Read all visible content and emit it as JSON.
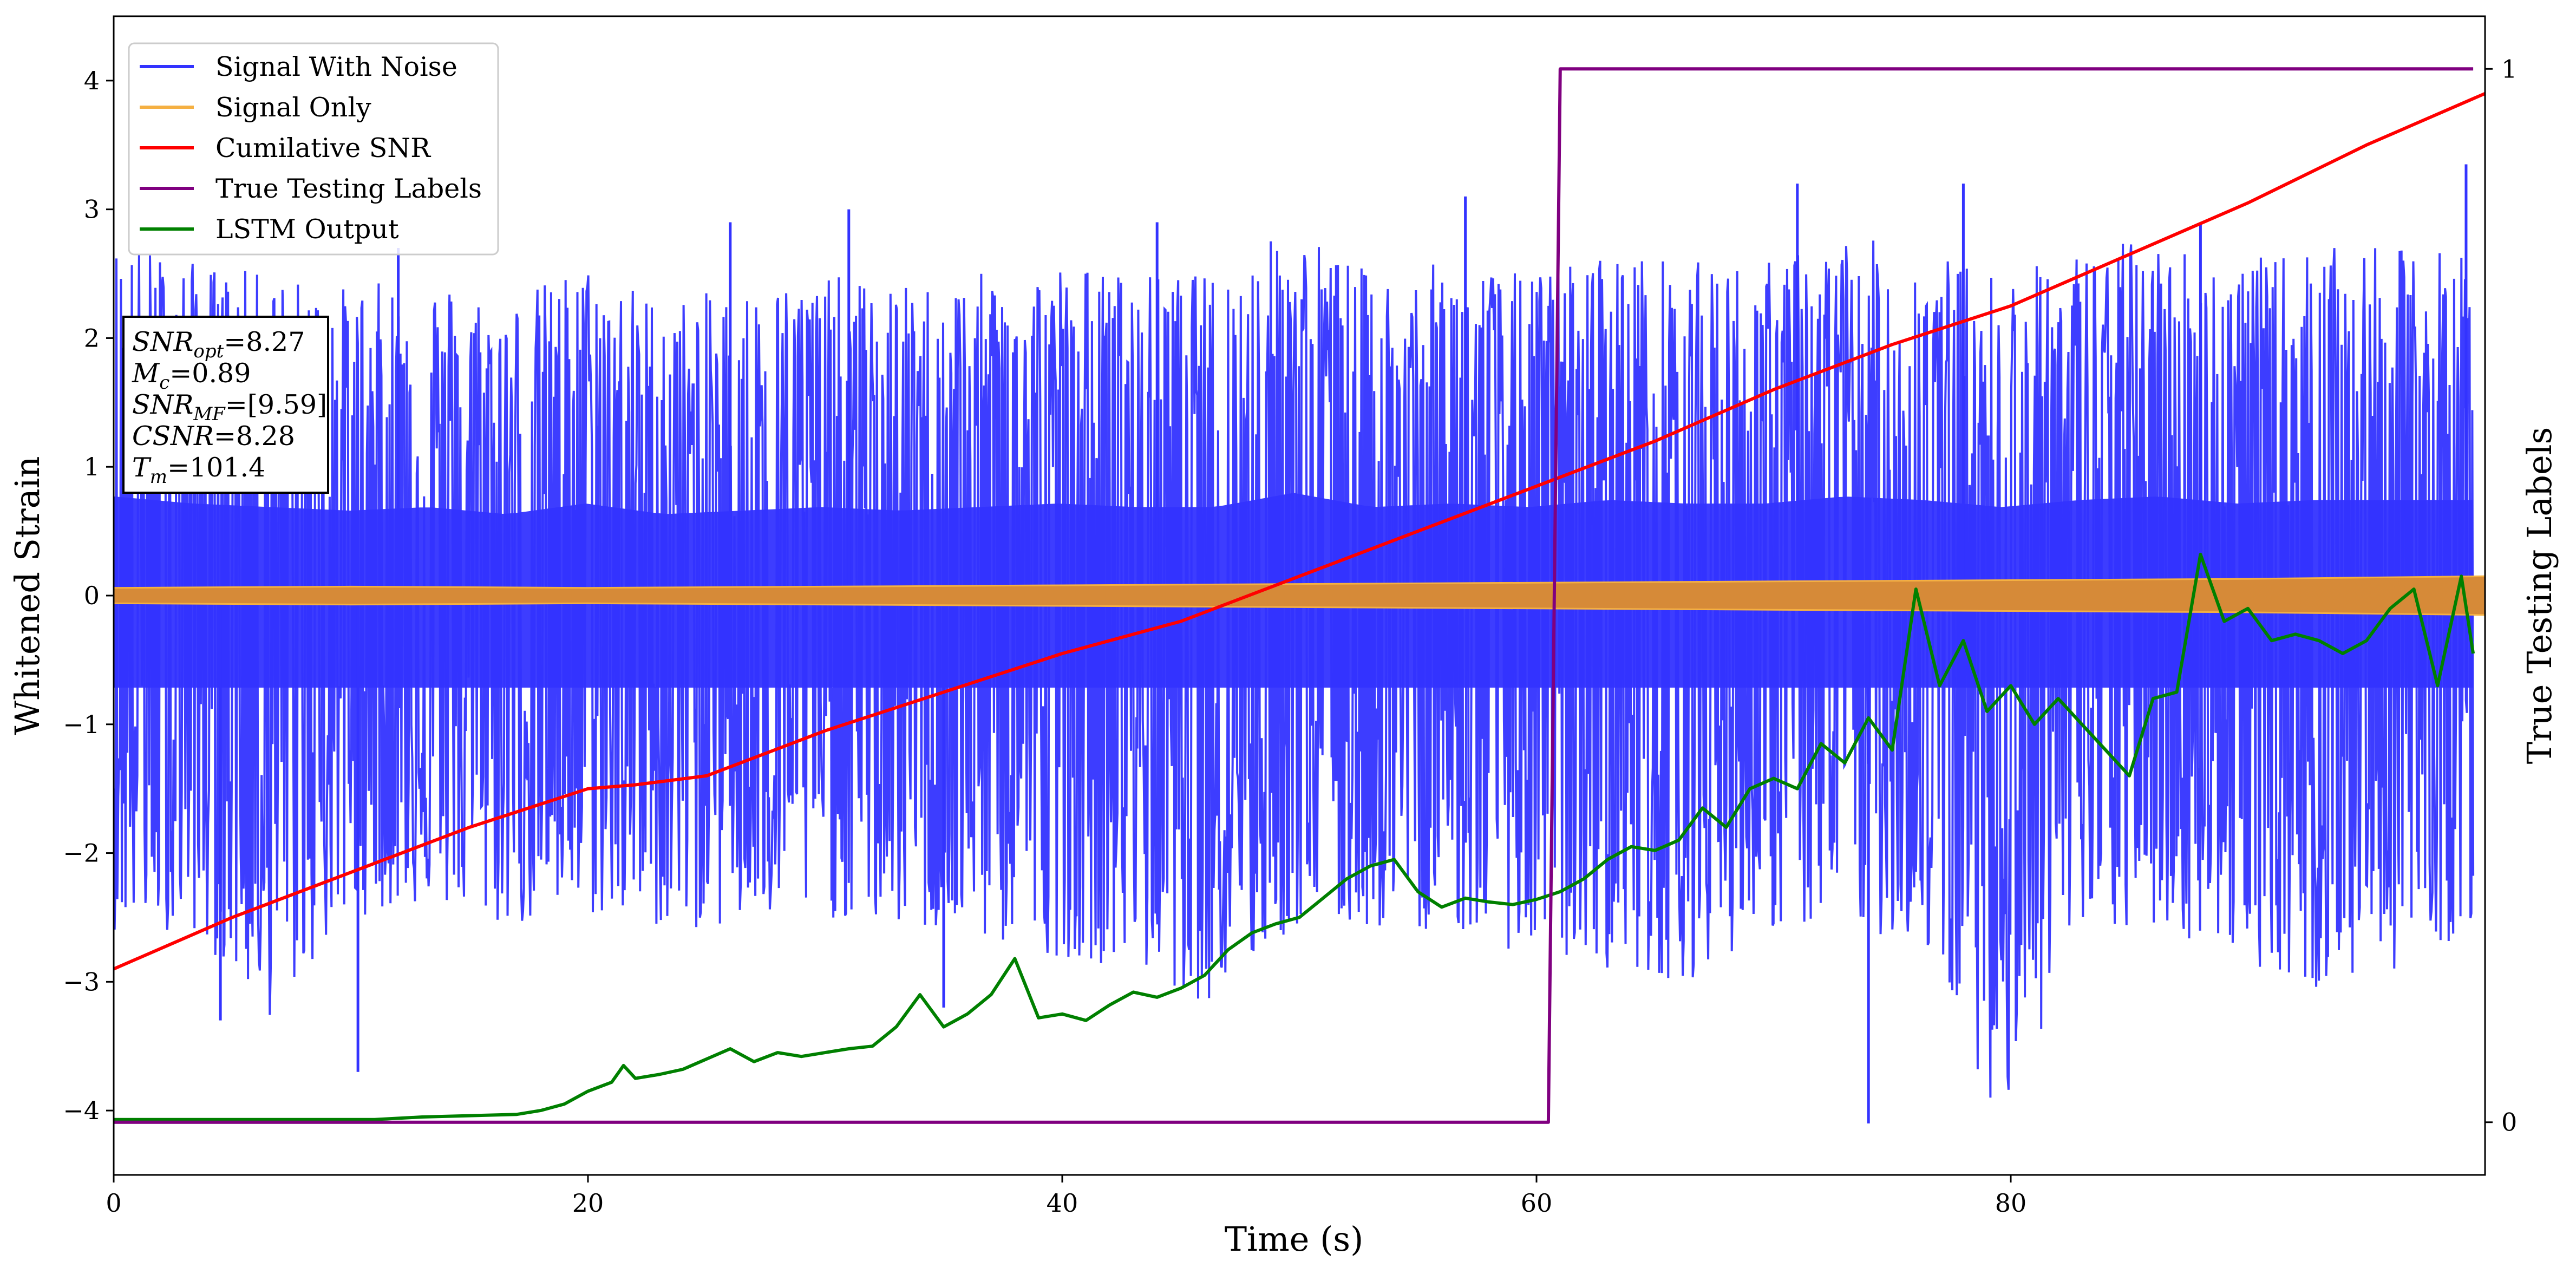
{
  "chart_data": {
    "type": "line",
    "xlabel": "Time (s)",
    "ylabel": "Whitened Strain",
    "y2label": "True Testing Labels",
    "xlim": [
      0,
      100
    ],
    "ylim": [
      -4.5,
      4.5
    ],
    "y2lim": [
      -0.05,
      1.05
    ],
    "xticks": [
      0,
      20,
      40,
      60,
      80
    ],
    "yticks": [
      -4,
      -3,
      -2,
      -1,
      0,
      1,
      2,
      3,
      4
    ],
    "y2ticks": [
      0,
      1
    ],
    "legend_position": "upper-left",
    "series": [
      {
        "name": "Signal With Noise",
        "axis": "left",
        "color": "#3333ff",
        "style": "dense noisy oscillation",
        "envelope_hi": [
          2.8,
          2.6,
          2.5,
          2.4,
          2.5,
          2.3,
          2.6,
          2.3,
          2.4,
          2.5,
          2.4,
          2.5,
          2.6,
          2.5,
          2.5,
          2.9,
          2.5,
          2.6,
          2.5,
          2.7,
          2.6,
          2.6,
          2.8,
          2.7,
          2.5,
          2.7,
          2.8,
          2.6,
          2.7,
          2.7,
          2.7
        ],
        "envelope_lo": [
          -2.6,
          -2.6,
          -3.3,
          -2.5,
          -2.4,
          -2.6,
          -2.5,
          -2.6,
          -2.6,
          -2.5,
          -2.6,
          -2.7,
          -2.8,
          -2.9,
          -3.2,
          -2.6,
          -2.6,
          -2.6,
          -2.8,
          -2.9,
          -3.0,
          -2.6,
          -2.6,
          -2.7,
          -4.1,
          -2.7,
          -2.6,
          -2.8,
          -3.1,
          -2.9,
          -2.6
        ],
        "spikes": [
          [
            4.5,
            -3.3
          ],
          [
            10.3,
            -3.7
          ],
          [
            12,
            2.7
          ],
          [
            26,
            2.9
          ],
          [
            31,
            3.0
          ],
          [
            35,
            -3.2
          ],
          [
            44,
            2.9
          ],
          [
            57,
            3.1
          ],
          [
            71,
            3.2
          ],
          [
            74,
            -4.1
          ],
          [
            78,
            3.2
          ],
          [
            88,
            2.9
          ],
          [
            99.2,
            3.35
          ]
        ]
      },
      {
        "name": "Signal Only",
        "axis": "left",
        "color": "#f5b042",
        "style": "thin band around zero",
        "x": [
          0,
          10,
          20,
          30,
          40,
          50,
          60,
          70,
          80,
          90,
          100
        ],
        "amplitude": [
          0.06,
          0.07,
          0.06,
          0.07,
          0.08,
          0.09,
          0.1,
          0.11,
          0.12,
          0.13,
          0.15
        ]
      },
      {
        "name": "Cumilative SNR",
        "axis": "left",
        "color": "#ff0000",
        "x": [
          0,
          5,
          10,
          15,
          20,
          22,
          25,
          30,
          35,
          40,
          45,
          50,
          55,
          60,
          65,
          70,
          75,
          80,
          85,
          90,
          95,
          100
        ],
        "values": [
          -2.9,
          -2.5,
          -2.15,
          -1.8,
          -1.5,
          -1.47,
          -1.4,
          -1.05,
          -0.75,
          -0.45,
          -0.2,
          0.15,
          0.5,
          0.85,
          1.2,
          1.6,
          1.95,
          2.25,
          2.65,
          3.05,
          3.5,
          3.9
        ]
      },
      {
        "name": "True Testing Labels",
        "axis": "right",
        "color": "#800080",
        "x": [
          0,
          60.5,
          61.0,
          99.5
        ],
        "values": [
          0,
          0,
          1,
          1
        ]
      },
      {
        "name": "LSTM Output",
        "axis": "left",
        "color": "#008000",
        "x": [
          0,
          11,
          13,
          15,
          17,
          18,
          19,
          20,
          21,
          21.5,
          22,
          23,
          24,
          25,
          26,
          27,
          28,
          29,
          30,
          31,
          32,
          33,
          34,
          35,
          36,
          37,
          38,
          39,
          40,
          41,
          42,
          43,
          44,
          45,
          46,
          47,
          48,
          49,
          50,
          51,
          52,
          53,
          54,
          55,
          56,
          57,
          58,
          59,
          60,
          61,
          62,
          63,
          64,
          65,
          66,
          67,
          68,
          69,
          70,
          71,
          72,
          73,
          74,
          75,
          76,
          77,
          78,
          79,
          80,
          81,
          82,
          83,
          84,
          85,
          86,
          87,
          88,
          89,
          90,
          91,
          92,
          93,
          94,
          95,
          96,
          97,
          98,
          99,
          99.5
        ],
        "values": [
          -4.07,
          -4.07,
          -4.05,
          -4.04,
          -4.03,
          -4.0,
          -3.95,
          -3.85,
          -3.78,
          -3.65,
          -3.75,
          -3.72,
          -3.68,
          -3.6,
          -3.52,
          -3.62,
          -3.55,
          -3.58,
          -3.55,
          -3.52,
          -3.5,
          -3.35,
          -3.1,
          -3.35,
          -3.25,
          -3.1,
          -2.82,
          -3.28,
          -3.25,
          -3.3,
          -3.18,
          -3.08,
          -3.12,
          -3.05,
          -2.95,
          -2.75,
          -2.62,
          -2.55,
          -2.5,
          -2.35,
          -2.2,
          -2.1,
          -2.05,
          -2.3,
          -2.42,
          -2.35,
          -2.38,
          -2.4,
          -2.36,
          -2.3,
          -2.2,
          -2.05,
          -1.95,
          -1.98,
          -1.9,
          -1.65,
          -1.8,
          -1.5,
          -1.42,
          -1.5,
          -1.15,
          -1.3,
          -0.95,
          -1.2,
          0.05,
          -0.7,
          -0.35,
          -0.9,
          -0.7,
          -1.0,
          -0.8,
          -1.0,
          -1.2,
          -1.4,
          -0.8,
          -0.75,
          0.32,
          -0.2,
          -0.1,
          -0.35,
          -0.3,
          -0.35,
          -0.45,
          -0.35,
          -0.1,
          0.05,
          -0.7,
          0.15,
          -0.45
        ]
      }
    ],
    "annotation_box": {
      "position": "upper-left below legend",
      "lines": [
        {
          "main": "SNR",
          "sub": "opt",
          "value": "=8.27"
        },
        {
          "main": "M",
          "sub": "c",
          "value": "=0.89"
        },
        {
          "main": "SNR",
          "sub": "MF",
          "value": "=[9.59]"
        },
        {
          "main": "CSNR",
          "sub": "",
          "value": "=8.28"
        },
        {
          "main": "T",
          "sub": "m",
          "value": "=101.4"
        }
      ]
    }
  }
}
